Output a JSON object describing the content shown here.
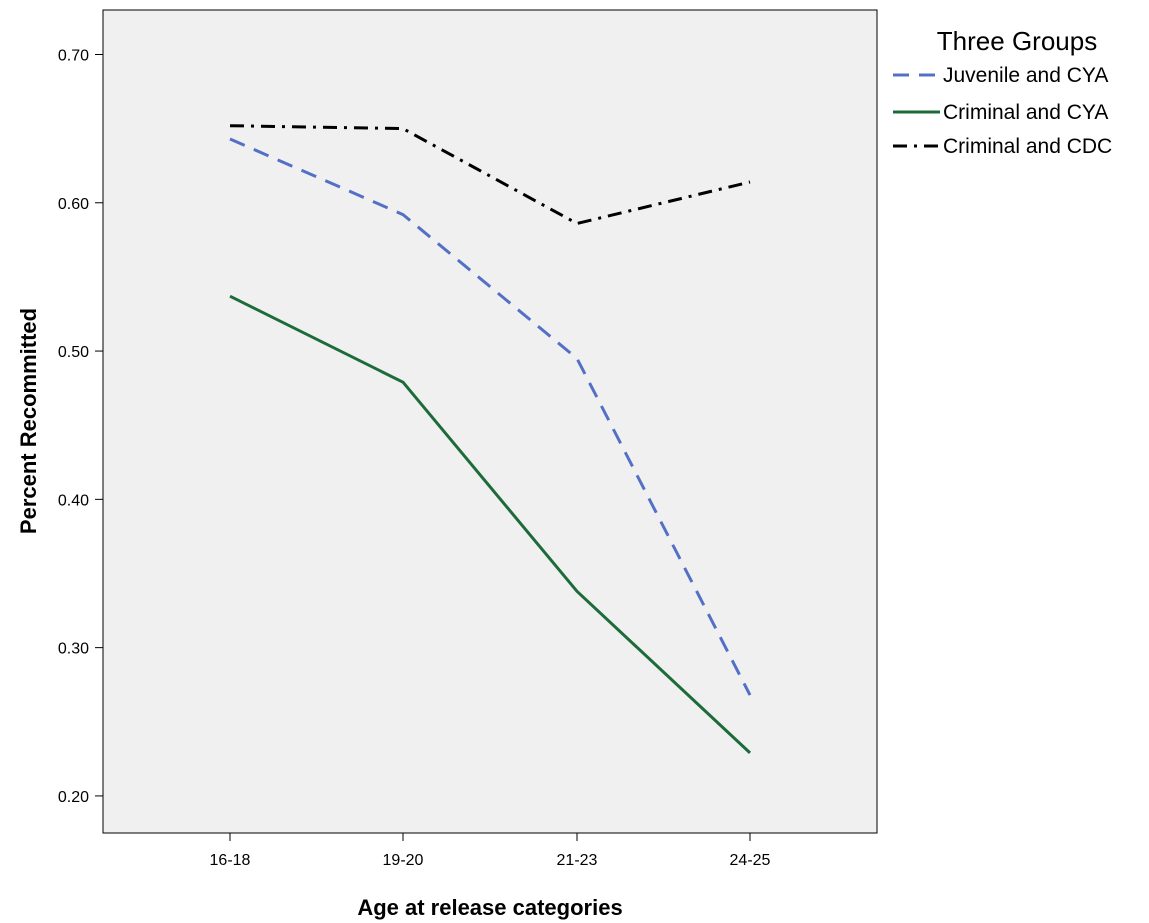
{
  "chart_data": {
    "type": "line",
    "xlabel": "Age at release categories",
    "ylabel": "Percent Recommitted",
    "categories": [
      "16-18",
      "19-20",
      "21-23",
      "24-25"
    ],
    "ylim": [
      0.175,
      0.73
    ],
    "yticks": [
      "0.20",
      "0.30",
      "0.40",
      "0.50",
      "0.60",
      "0.70"
    ],
    "ytick_values": [
      0.2,
      0.3,
      0.4,
      0.5,
      0.6,
      0.7
    ],
    "grid": false,
    "plot_background": "#f0f0f0",
    "legend": {
      "title": "Three Groups",
      "position": "right"
    },
    "series": [
      {
        "name": "Juvenile and CYA",
        "values": [
          0.643,
          0.592,
          0.495,
          0.268
        ],
        "color": "#5470c6",
        "dash": "dashed"
      },
      {
        "name": "Criminal and CYA",
        "values": [
          0.537,
          0.479,
          0.338,
          0.229
        ],
        "color": "#1e6b3a",
        "dash": "solid"
      },
      {
        "name": "Criminal and CDC",
        "values": [
          0.652,
          0.65,
          0.586,
          0.614
        ],
        "color": "#000000",
        "dash": "dashdot"
      }
    ]
  }
}
